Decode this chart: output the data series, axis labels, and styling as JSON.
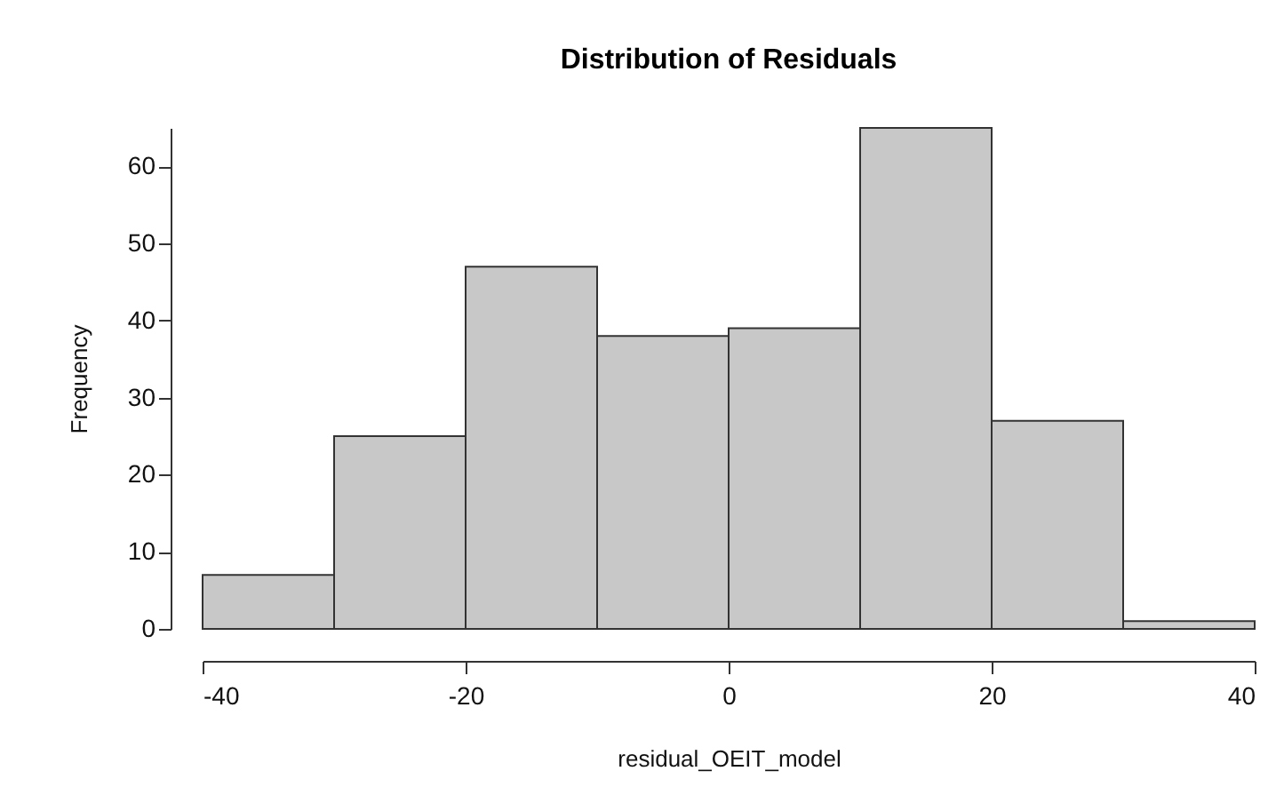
{
  "chart_data": {
    "type": "histogram",
    "title": "Distribution of Residuals",
    "xlabel": "residual_OEIT_model",
    "ylabel": "Frequency",
    "bins": [
      -40,
      -30,
      -20,
      -10,
      0,
      10,
      20,
      30,
      40
    ],
    "values": [
      7,
      25,
      47,
      38,
      39,
      65,
      27,
      1
    ],
    "color": "#c8c8c8",
    "xlim": [
      -40,
      40
    ],
    "xticks": [
      -40,
      -20,
      0,
      20,
      40
    ],
    "ylim": [
      0,
      65
    ],
    "yticks": [
      0,
      10,
      20,
      30,
      40,
      50,
      60
    ],
    "grid": false
  }
}
